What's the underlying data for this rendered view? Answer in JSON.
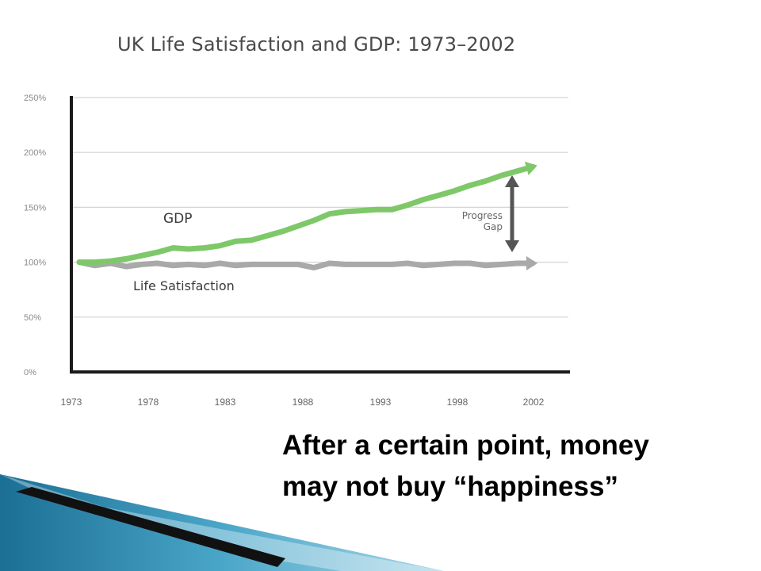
{
  "slide": {
    "caption_line_1": "After a certain point, money",
    "caption_line_2": "may not buy “happiness”"
  },
  "chart_data": {
    "type": "line",
    "title": "UK Life Satisfaction and GDP: 1973–2002",
    "xlabel": "",
    "ylabel": "",
    "x_ticks": [
      "1973",
      "1978",
      "1983",
      "1988",
      "1993",
      "1998",
      "2002"
    ],
    "y_ticks": [
      "0%",
      "50%",
      "100%",
      "150%",
      "200%",
      "250%"
    ],
    "ylim": [
      0,
      250
    ],
    "xlim": [
      1973,
      2002
    ],
    "grid": true,
    "series": [
      {
        "name": "GDP",
        "color": "#7ec86a",
        "x": [
          1973,
          1974,
          1975,
          1976,
          1977,
          1978,
          1979,
          1980,
          1981,
          1982,
          1983,
          1984,
          1985,
          1986,
          1987,
          1988,
          1989,
          1990,
          1991,
          1992,
          1993,
          1994,
          1995,
          1996,
          1997,
          1998,
          1999,
          2000,
          2001,
          2002
        ],
        "values": [
          100,
          100,
          101,
          103,
          106,
          109,
          113,
          112,
          113,
          115,
          119,
          120,
          124,
          128,
          133,
          138,
          144,
          146,
          147,
          148,
          148,
          152,
          157,
          161,
          165,
          170,
          174,
          179,
          183,
          187
        ]
      },
      {
        "name": "Life Satisfaction",
        "color": "#a9a9a9",
        "x": [
          1973,
          1974,
          1975,
          1976,
          1977,
          1978,
          1979,
          1980,
          1981,
          1982,
          1983,
          1984,
          1985,
          1986,
          1987,
          1988,
          1989,
          1990,
          1991,
          1992,
          1993,
          1994,
          1995,
          1996,
          1997,
          1998,
          1999,
          2000,
          2001,
          2002
        ],
        "values": [
          100,
          97,
          99,
          96,
          98,
          99,
          97,
          98,
          97,
          99,
          97,
          98,
          98,
          98,
          98,
          95,
          99,
          98,
          98,
          98,
          98,
          99,
          97,
          98,
          99,
          99,
          97,
          98,
          99,
          99
        ]
      }
    ],
    "annotations": {
      "gap_label_line_1": "Progress",
      "gap_label_line_2": "Gap"
    },
    "colors": {
      "axis": "#1a1a1a",
      "grid": "#d4d4d4",
      "tick_text": "#8a8a8a",
      "gap_arrow": "#555555"
    }
  }
}
